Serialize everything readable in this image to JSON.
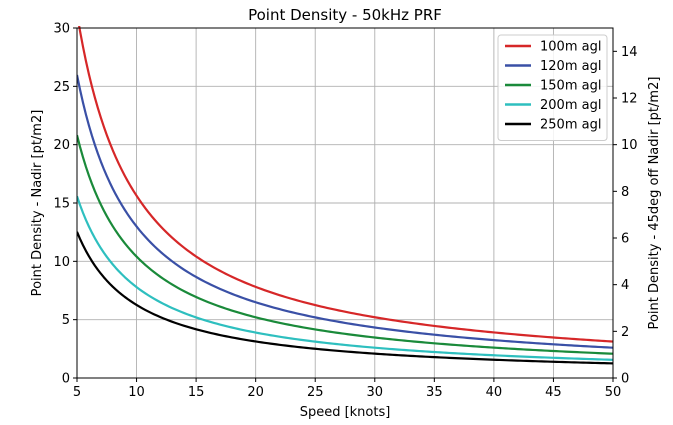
{
  "chart_data": {
    "type": "line",
    "title": "Point Density - 50kHz PRF",
    "xlabel": "Speed [knots]",
    "ylabel": "Point Density - Nadir [pt/m2]",
    "y2label": "Point Density - 45deg off Nadir [pt/m2]",
    "xlim": [
      5,
      50
    ],
    "ylim": [
      0,
      30
    ],
    "y2lim": [
      0,
      15
    ],
    "xticks": [
      "5",
      "10",
      "15",
      "20",
      "25",
      "30",
      "35",
      "40",
      "45",
      "50"
    ],
    "yticks": [
      "0",
      "5",
      "10",
      "15",
      "20",
      "25",
      "30"
    ],
    "y2ticks": [
      "0",
      "2",
      "4",
      "6",
      "8",
      "10",
      "12",
      "14"
    ],
    "grid": true,
    "legend_position": "top-right",
    "x": [
      5,
      7.5,
      10,
      12.5,
      15,
      17.5,
      20,
      22.5,
      25,
      27.5,
      30,
      32.5,
      35,
      37.5,
      40,
      42.5,
      45,
      47.5,
      50
    ],
    "series": [
      {
        "name": "100m agl",
        "color": "#d62728",
        "values": [
          31.2,
          20.8,
          15.6,
          12.5,
          10.4,
          8.9,
          7.8,
          6.9,
          6.2,
          5.7,
          5.2,
          4.8,
          4.5,
          4.2,
          3.9,
          3.7,
          3.5,
          3.3,
          3.1
        ]
      },
      {
        "name": "120m agl",
        "color": "#3a50a6",
        "values": [
          26.0,
          17.3,
          13.0,
          10.4,
          8.7,
          7.4,
          6.5,
          5.8,
          5.2,
          4.7,
          4.3,
          4.0,
          3.7,
          3.5,
          3.2,
          3.1,
          2.9,
          2.7,
          2.6
        ]
      },
      {
        "name": "150m agl",
        "color": "#1a8a3a",
        "values": [
          20.8,
          13.9,
          10.4,
          8.3,
          6.9,
          5.9,
          5.2,
          4.6,
          4.2,
          3.8,
          3.5,
          3.2,
          3.0,
          2.8,
          2.6,
          2.4,
          2.3,
          2.2,
          2.1
        ]
      },
      {
        "name": "200m agl",
        "color": "#2ebfbf",
        "values": [
          15.6,
          10.4,
          7.8,
          6.2,
          5.2,
          4.5,
          3.9,
          3.5,
          3.1,
          2.8,
          2.6,
          2.4,
          2.2,
          2.1,
          2.0,
          1.8,
          1.7,
          1.6,
          1.6
        ]
      },
      {
        "name": "250m agl",
        "color": "#000000",
        "values": [
          12.5,
          8.3,
          6.2,
          5.0,
          4.2,
          3.6,
          3.1,
          2.8,
          2.5,
          2.3,
          2.1,
          1.9,
          1.8,
          1.7,
          1.6,
          1.5,
          1.4,
          1.3,
          1.2
        ]
      }
    ]
  }
}
